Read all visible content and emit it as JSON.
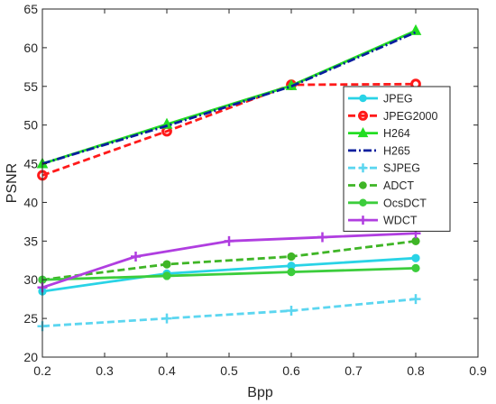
{
  "chart_data": {
    "type": "line",
    "xlabel": "Bpp",
    "ylabel": "PSNR",
    "xlim": [
      0.2,
      0.9
    ],
    "ylim": [
      20,
      65
    ],
    "xticks": [
      0.2,
      0.3,
      0.4,
      0.5,
      0.6,
      0.7,
      0.8,
      0.9
    ],
    "yticks": [
      20,
      25,
      30,
      35,
      40,
      45,
      50,
      55,
      60,
      65
    ],
    "grid": false,
    "legend_position": "right",
    "series": [
      {
        "name": "JPEG",
        "color": "#29d3e6",
        "dash": "solid",
        "marker": "circle",
        "x": [
          0.2,
          0.4,
          0.6,
          0.8
        ],
        "y": [
          28.5,
          30.8,
          31.8,
          32.8
        ]
      },
      {
        "name": "JPEG2000",
        "color": "#ff1a1a",
        "dash": "dashed",
        "marker": "open-circle",
        "x": [
          0.2,
          0.4,
          0.6,
          0.8
        ],
        "y": [
          43.5,
          49.2,
          55.2,
          55.3
        ]
      },
      {
        "name": "H264",
        "color": "#22dd22",
        "dash": "solid",
        "marker": "triangle",
        "x": [
          0.2,
          0.4,
          0.6,
          0.8
        ],
        "y": [
          45.0,
          50.1,
          55.1,
          62.2
        ]
      },
      {
        "name": "H265",
        "color": "#0a1f9e",
        "dash": "dashdot",
        "marker": "none",
        "x": [
          0.2,
          0.4,
          0.6,
          0.8
        ],
        "y": [
          45.0,
          49.9,
          55.0,
          62.0
        ]
      },
      {
        "name": "SJPEG",
        "color": "#5cd6f0",
        "dash": "dashed",
        "marker": "plus",
        "x": [
          0.2,
          0.4,
          0.6,
          0.8
        ],
        "y": [
          24.0,
          25.0,
          26.0,
          27.5
        ]
      },
      {
        "name": "ADCT",
        "color": "#3fb526",
        "dash": "dashed",
        "marker": "circle",
        "x": [
          0.2,
          0.4,
          0.6,
          0.8
        ],
        "y": [
          30.0,
          32.0,
          33.0,
          35.0
        ]
      },
      {
        "name": "OcsDCT",
        "color": "#3ccd3c",
        "dash": "solid",
        "marker": "circle",
        "x": [
          0.2,
          0.4,
          0.6,
          0.8
        ],
        "y": [
          30.0,
          30.5,
          31.0,
          31.5
        ]
      },
      {
        "name": "WDCT",
        "color": "#b03ee0",
        "dash": "solid",
        "marker": "plus",
        "x": [
          0.2,
          0.35,
          0.5,
          0.65,
          0.8
        ],
        "y": [
          29.0,
          33.0,
          35.0,
          35.5,
          36.0
        ]
      }
    ]
  }
}
